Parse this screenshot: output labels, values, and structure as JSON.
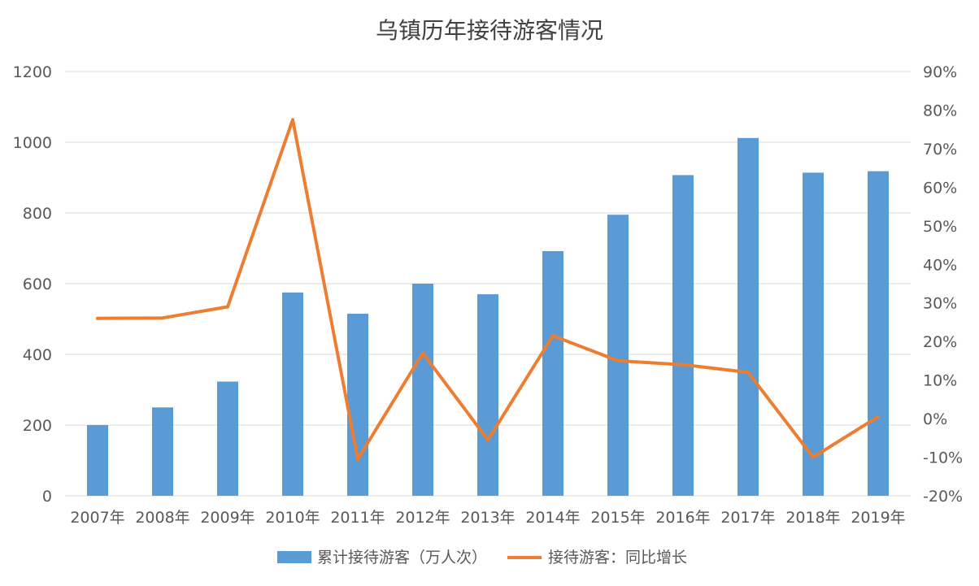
{
  "chart_data": {
    "type": "bar",
    "title": "乌镇历年接待游客情况",
    "categories": [
      "2007年",
      "2008年",
      "2009年",
      "2010年",
      "2011年",
      "2012年",
      "2013年",
      "2014年",
      "2015年",
      "2016年",
      "2017年",
      "2018年",
      "2019年"
    ],
    "series": [
      {
        "name": "累计接待游客（万人次）",
        "type": "bar",
        "axis": "left",
        "color": "#5b9bd5",
        "values": [
          200,
          250,
          323,
          575,
          515,
          600,
          570,
          692,
          795,
          907,
          1012,
          914,
          918
        ]
      },
      {
        "name": "接待游客：同比增长",
        "type": "line",
        "axis": "right",
        "color": "#ed7d31",
        "values": [
          26,
          26.1,
          29,
          77.5,
          -10.5,
          17,
          -5.5,
          21.5,
          15,
          14,
          12,
          -10,
          0.5
        ]
      }
    ],
    "y_left": {
      "min": 0,
      "max": 1200,
      "ticks": [
        "0",
        "200",
        "400",
        "600",
        "800",
        "1000",
        "1200"
      ]
    },
    "y_right": {
      "min": -20,
      "max": 90,
      "ticks": [
        "-20%",
        "-10%",
        "0%",
        "10%",
        "20%",
        "30%",
        "40%",
        "50%",
        "60%",
        "70%",
        "80%",
        "90%"
      ]
    },
    "grid": true,
    "legend_position": "bottom"
  }
}
